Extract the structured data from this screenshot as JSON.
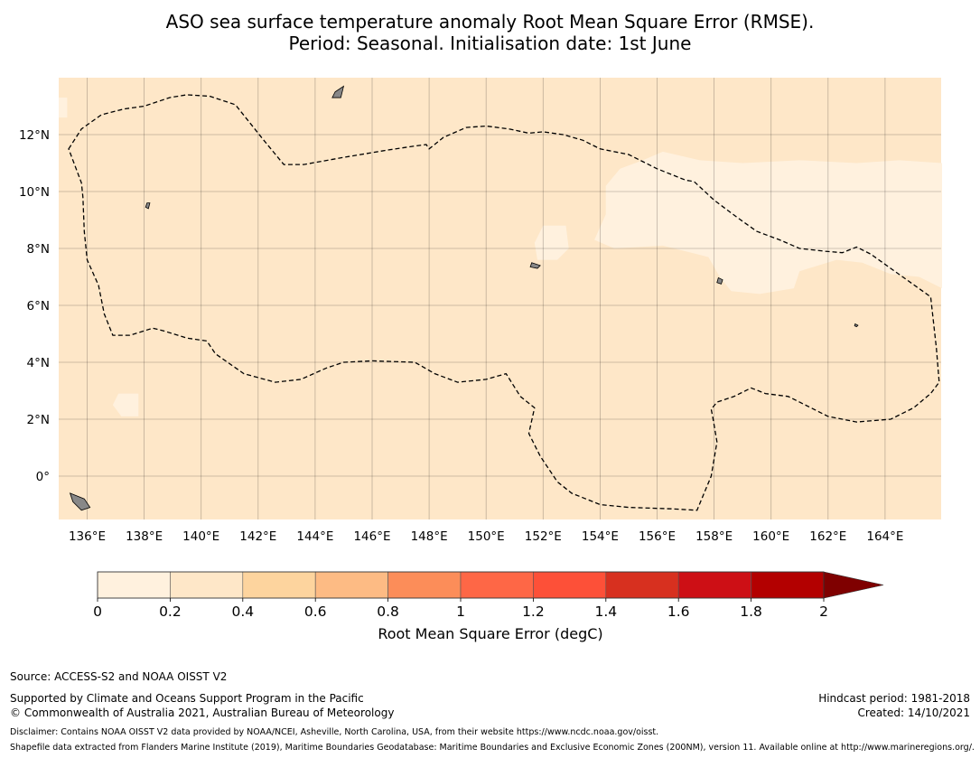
{
  "title": {
    "line1": "ASO sea surface temperature anomaly Root Mean Square Error (RMSE).",
    "line2": "Period: Seasonal. Initialisation date: 1st June"
  },
  "map": {
    "lon_range": [
      135,
      166
    ],
    "lat_range": [
      -1.5,
      14
    ],
    "lon_ticks": [
      "136°E",
      "138°E",
      "140°E",
      "142°E",
      "144°E",
      "146°E",
      "148°E",
      "150°E",
      "152°E",
      "154°E",
      "156°E",
      "158°E",
      "160°E",
      "162°E",
      "164°E"
    ],
    "lat_ticks": [
      "0°",
      "2°N",
      "4°N",
      "6°N",
      "8°N",
      "10°N",
      "12°N"
    ],
    "grid": true,
    "background_color": "#fee7c8",
    "low_region_color": "#fff1de",
    "eez_boundary_style": "dashed black"
  },
  "colorbar": {
    "label": "Root Mean Square Error (degC)",
    "ticks": [
      "0",
      "0.2",
      "0.4",
      "0.6",
      "0.8",
      "1",
      "1.2",
      "1.4",
      "1.6",
      "1.8",
      "2"
    ],
    "colors": [
      "#fff1de",
      "#fee7c8",
      "#fdd49e",
      "#fdbb84",
      "#fc8d59",
      "#fe6746",
      "#fd5038",
      "#d7301f",
      "#cd0f15",
      "#b30000"
    ],
    "extend_color": "#7f0000"
  },
  "footer": {
    "source": "Source: ACCESS-S2 and NOAA OISST V2",
    "supported": "Supported by Climate and Oceans Support Program in the Pacific",
    "copyright": "© Commonwealth of Australia 2021, Australian Bureau of Meteorology",
    "hindcast": "Hindcast period: 1981-2018",
    "created": "Created: 14/10/2021",
    "disclaimer": "Disclaimer: Contains NOAA OISST V2 data provided by NOAA/NCEI, Asheville, North Carolina, USA, from their website https://www.ncdc.noaa.gov/oisst.",
    "shapefile": "Shapefile data extracted from Flanders Marine Institute (2019), Maritime Boundaries Geodatabase: Maritime Boundaries and Exclusive Economic Zones (200NM), version 11. Available online at http://www.marineregions.org/."
  }
}
